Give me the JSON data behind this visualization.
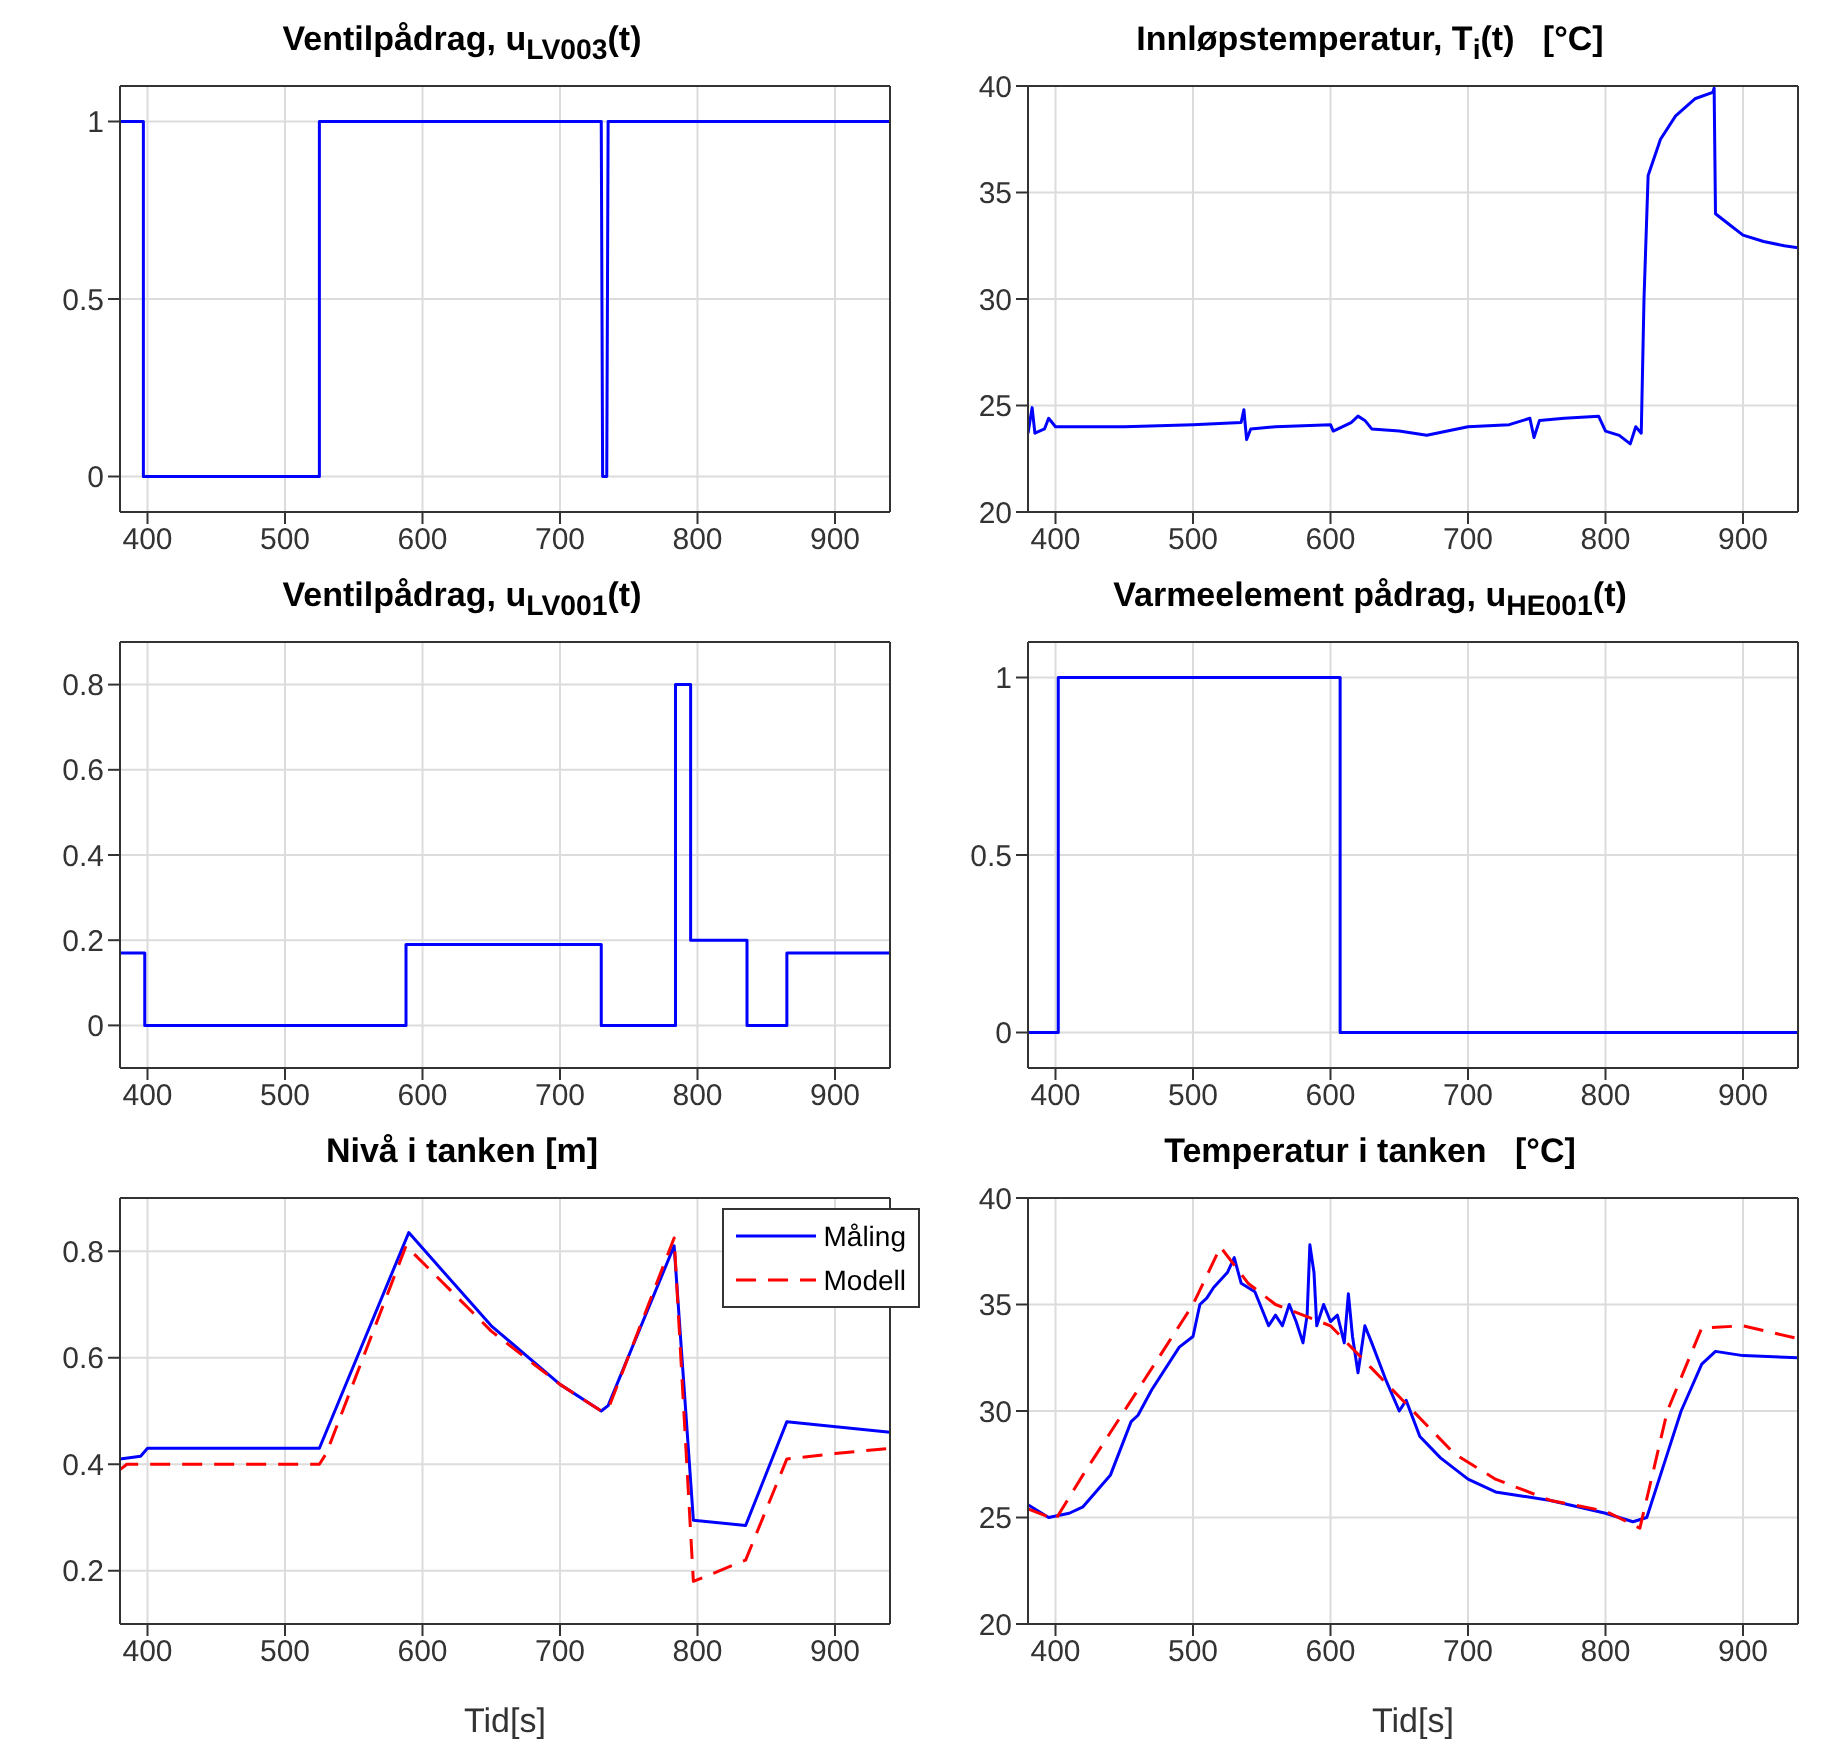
{
  "chart_data": [
    {
      "type": "line",
      "title": "Ventilpådrag, u$_{LV003}$(t)",
      "xlim": [
        380,
        940
      ],
      "xticks": [
        400,
        500,
        600,
        700,
        800,
        900
      ],
      "ylim": [
        -0.1,
        1.1
      ],
      "yticks": [
        0,
        0.5,
        1
      ],
      "grid": true,
      "series": [
        {
          "color": "#0000ff",
          "x": [
            380,
            397,
            397,
            525,
            525,
            730,
            731,
            734,
            735,
            940
          ],
          "values": [
            1,
            1,
            0,
            0,
            1,
            1,
            0,
            0,
            1,
            1
          ]
        }
      ]
    },
    {
      "type": "line",
      "title": "Innløpstemperatur, T$_{i}$(t)   [°C]",
      "xlim": [
        380,
        940
      ],
      "xticks": [
        400,
        500,
        600,
        700,
        800,
        900
      ],
      "ylim": [
        20,
        40
      ],
      "yticks": [
        20,
        25,
        30,
        35,
        40
      ],
      "grid": true,
      "series": [
        {
          "color": "#0000ff",
          "x": [
            380,
            383,
            385,
            392,
            395,
            400,
            450,
            500,
            535,
            537,
            539,
            542,
            560,
            600,
            602,
            615,
            620,
            625,
            630,
            650,
            670,
            700,
            730,
            745,
            748,
            752,
            770,
            795,
            800,
            810,
            818,
            822,
            826,
            828,
            831,
            840,
            851,
            865,
            878,
            879,
            880,
            890,
            900,
            915,
            930,
            940
          ],
          "values": [
            23.7,
            24.9,
            23.7,
            23.9,
            24.4,
            24.0,
            24.0,
            24.1,
            24.2,
            24.8,
            23.4,
            23.9,
            24.0,
            24.1,
            23.8,
            24.2,
            24.5,
            24.3,
            23.9,
            23.8,
            23.6,
            24.0,
            24.1,
            24.4,
            23.5,
            24.3,
            24.4,
            24.5,
            23.8,
            23.6,
            23.2,
            24.0,
            23.7,
            30,
            35.8,
            37.5,
            38.6,
            39.4,
            39.7,
            39.9,
            34.0,
            33.5,
            33.0,
            32.7,
            32.5,
            32.4
          ]
        }
      ]
    },
    {
      "type": "line",
      "title": "Ventilpådrag, u$_{LV001}$(t)",
      "xlim": [
        380,
        940
      ],
      "xticks": [
        400,
        500,
        600,
        700,
        800,
        900
      ],
      "ylim": [
        -0.1,
        0.9
      ],
      "yticks": [
        0,
        0.2,
        0.4,
        0.6,
        0.8
      ],
      "grid": true,
      "series": [
        {
          "color": "#0000ff",
          "x": [
            380,
            398,
            398,
            588,
            588,
            730,
            730,
            784,
            784,
            795,
            795,
            836,
            836,
            865,
            865,
            940
          ],
          "values": [
            0.17,
            0.17,
            0,
            0,
            0.19,
            0.19,
            0,
            0,
            0.8,
            0.8,
            0.2,
            0.2,
            0,
            0,
            0.17,
            0.17
          ]
        }
      ]
    },
    {
      "type": "line",
      "title": "Varmeelement pådrag, u$_{HE001}$(t)",
      "xlim": [
        380,
        940
      ],
      "xticks": [
        400,
        500,
        600,
        700,
        800,
        900
      ],
      "ylim": [
        -0.1,
        1.1
      ],
      "yticks": [
        0,
        0.5,
        1
      ],
      "grid": true,
      "series": [
        {
          "color": "#0000ff",
          "x": [
            380,
            402,
            402,
            607,
            607,
            940
          ],
          "values": [
            0,
            0,
            1,
            1,
            0,
            0
          ]
        }
      ]
    },
    {
      "type": "line",
      "title": "Nivå i tanken [m]",
      "xlabel": "Tid[s]",
      "xlim": [
        380,
        940
      ],
      "xticks": [
        400,
        500,
        600,
        700,
        800,
        900
      ],
      "ylim": [
        0.1,
        0.9
      ],
      "yticks": [
        0.2,
        0.4,
        0.6,
        0.8
      ],
      "grid": true,
      "legend": "top right",
      "series": [
        {
          "name": "Måling",
          "color": "#0000ff",
          "line_style": "solid",
          "x": [
            380,
            395,
            400,
            525,
            590,
            650,
            700,
            730,
            735,
            783,
            797,
            835,
            865,
            940
          ],
          "values": [
            0.41,
            0.415,
            0.43,
            0.43,
            0.835,
            0.66,
            0.55,
            0.5,
            0.51,
            0.81,
            0.295,
            0.285,
            0.48,
            0.46
          ]
        },
        {
          "name": "Modell",
          "color": "#ff0000",
          "line_style": "dashed",
          "x": [
            380,
            385,
            525,
            530,
            588,
            650,
            700,
            730,
            736,
            783,
            797,
            835,
            865,
            900,
            940
          ],
          "values": [
            0.39,
            0.4,
            0.4,
            0.42,
            0.81,
            0.65,
            0.55,
            0.5,
            0.51,
            0.825,
            0.18,
            0.22,
            0.41,
            0.42,
            0.43
          ]
        }
      ]
    },
    {
      "type": "line",
      "title": "Temperatur i tanken   [°C]",
      "xlabel": "Tid[s]",
      "xlim": [
        380,
        940
      ],
      "xticks": [
        400,
        500,
        600,
        700,
        800,
        900
      ],
      "ylim": [
        20,
        40
      ],
      "yticks": [
        20,
        25,
        30,
        35,
        40
      ],
      "grid": true,
      "series": [
        {
          "color": "#0000ff",
          "line_style": "solid",
          "x": [
            380,
            395,
            410,
            420,
            440,
            455,
            460,
            470,
            490,
            500,
            505,
            510,
            515,
            525,
            530,
            535,
            545,
            555,
            560,
            565,
            570,
            575,
            580,
            583,
            585,
            588,
            590,
            595,
            600,
            605,
            610,
            613,
            616,
            620,
            625,
            630,
            640,
            650,
            655,
            665,
            680,
            700,
            720,
            740,
            760,
            800,
            820,
            830,
            845,
            855,
            870,
            880,
            900,
            940
          ],
          "values": [
            25.6,
            25.0,
            25.2,
            25.5,
            27,
            29.5,
            29.8,
            31,
            33,
            33.5,
            35,
            35.3,
            35.8,
            36.5,
            37.2,
            36,
            35.6,
            34,
            34.5,
            34,
            35,
            34.2,
            33.2,
            34.5,
            37.8,
            36.5,
            34,
            35,
            34.2,
            34.5,
            33.2,
            35.5,
            33.5,
            31.8,
            34,
            33.2,
            31.5,
            30,
            30.5,
            28.8,
            27.8,
            26.8,
            26.2,
            26,
            25.8,
            25.2,
            24.8,
            25.0,
            28,
            30,
            32.2,
            32.8,
            32.6,
            32.5
          ]
        },
        {
          "color": "#ff0000",
          "line_style": "dashed",
          "x": [
            380,
            400,
            420,
            450,
            480,
            500,
            520,
            540,
            560,
            600,
            630,
            660,
            690,
            720,
            760,
            800,
            825,
            845,
            870,
            900,
            940
          ],
          "values": [
            25.4,
            24.9,
            27,
            30,
            33,
            35,
            37.7,
            36,
            35,
            34,
            32,
            30,
            28,
            26.8,
            25.8,
            25.3,
            24.5,
            30,
            33.9,
            34,
            33.4
          ]
        }
      ]
    }
  ]
}
